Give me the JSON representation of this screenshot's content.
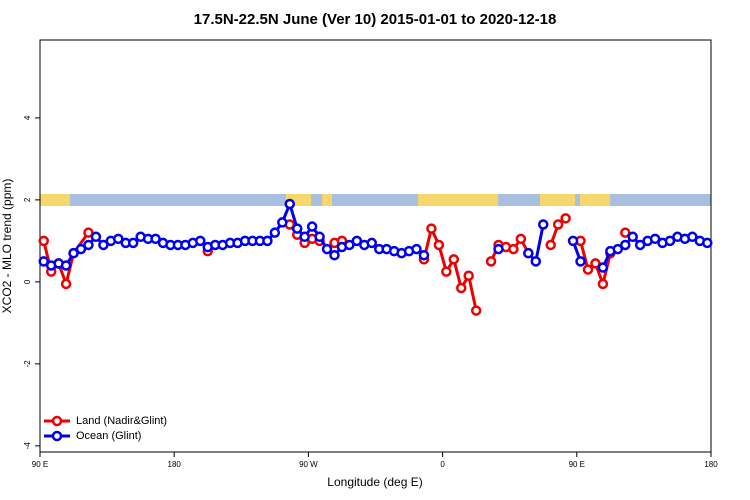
{
  "chart_data": {
    "type": "line",
    "title": "17.5N-22.5N June (Ver 10)   2015-01-01 to 2020-12-18",
    "xlabel": "Longitude (deg E)",
    "ylabel": "XCO2 - MLO trend (ppm)",
    "xlim": [
      90,
      540
    ],
    "ylim": [
      -4.15,
      5.9
    ],
    "xticks": [
      {
        "value": 90,
        "label": "90 E"
      },
      180,
      {
        "value": 270,
        "label": "90 W"
      },
      {
        "value": 360,
        "label": "0"
      },
      {
        "value": 450,
        "label": "90 E"
      },
      {
        "value": 540,
        "label": "180"
      }
    ],
    "yticks": [
      -4,
      -2,
      0,
      2,
      4
    ],
    "legend": "bottom-left",
    "series": [
      {
        "name": "Land (Nadir&Glint)",
        "color": "#ee0000",
        "x": [
          92.5,
          97.5,
          102.5,
          107.5,
          112.5,
          122.5,
          127.5,
          202.5,
          207.5,
          257.5,
          262.5,
          267.5,
          272.5,
          277.5,
          282.5,
          287.5,
          292.5,
          297.5,
          347.5,
          352.5,
          357.5,
          362.5,
          367.5,
          372.5,
          377.5,
          382.5,
          387.5,
          392.5,
          397.5,
          402.5,
          407.5,
          412.5,
          417.5,
          422.5,
          432.5,
          437.5,
          442.5,
          447.5,
          452.5,
          457.5,
          462.5,
          467.5,
          472.5,
          477.5,
          482.5
        ],
        "values": [
          1.0,
          0.25,
          0.45,
          -0.05,
          0.7,
          1.2,
          null,
          0.75,
          null,
          1.4,
          1.15,
          0.95,
          1.05,
          1.0,
          null,
          0.95,
          1.0,
          null,
          0.55,
          1.3,
          0.9,
          0.25,
          0.55,
          -0.15,
          0.15,
          -0.7,
          null,
          0.5,
          0.9,
          0.85,
          0.8,
          1.05,
          0.7,
          null,
          0.9,
          1.4,
          1.55,
          null,
          1.0,
          0.3,
          0.45,
          -0.05,
          0.7,
          null,
          1.2
        ]
      },
      {
        "name": "Ocean (Glint)",
        "color": "#0000ee",
        "x": [
          92.5,
          97.5,
          102.5,
          107.5,
          112.5,
          117.5,
          122.5,
          127.5,
          132.5,
          137.5,
          142.5,
          147.5,
          152.5,
          157.5,
          162.5,
          167.5,
          172.5,
          177.5,
          182.5,
          187.5,
          192.5,
          197.5,
          202.5,
          207.5,
          212.5,
          217.5,
          222.5,
          227.5,
          232.5,
          237.5,
          242.5,
          247.5,
          252.5,
          257.5,
          262.5,
          267.5,
          272.5,
          277.5,
          282.5,
          287.5,
          292.5,
          297.5,
          302.5,
          307.5,
          312.5,
          317.5,
          322.5,
          327.5,
          332.5,
          337.5,
          342.5,
          347.5,
          352.5,
          397.5,
          402.5,
          417.5,
          422.5,
          427.5,
          432.5,
          447.5,
          452.5,
          457.5,
          467.5,
          472.5,
          477.5,
          482.5,
          487.5,
          492.5,
          497.5,
          502.5,
          507.5,
          512.5,
          517.5,
          522.5,
          527.5,
          532.5,
          537.5
        ],
        "values": [
          0.5,
          0.4,
          0.45,
          0.4,
          0.7,
          0.8,
          0.9,
          1.1,
          0.9,
          1.0,
          1.05,
          0.95,
          0.95,
          1.1,
          1.05,
          1.05,
          0.95,
          0.9,
          0.9,
          0.9,
          0.95,
          1.0,
          0.85,
          0.9,
          0.9,
          0.95,
          0.95,
          1.0,
          1.0,
          1.0,
          1.0,
          1.2,
          1.45,
          1.9,
          1.3,
          1.1,
          1.35,
          1.1,
          0.8,
          0.65,
          0.85,
          0.9,
          1.0,
          0.9,
          0.95,
          0.8,
          0.8,
          0.75,
          0.7,
          0.75,
          0.8,
          0.65,
          null,
          0.8,
          null,
          0.7,
          0.5,
          1.4,
          null,
          1.0,
          0.5,
          null,
          0.35,
          0.75,
          0.8,
          0.9,
          1.1,
          0.9,
          1.0,
          1.05,
          0.95,
          1.0,
          1.1,
          1.05,
          1.1,
          1.0,
          0.95
        ]
      }
    ]
  }
}
